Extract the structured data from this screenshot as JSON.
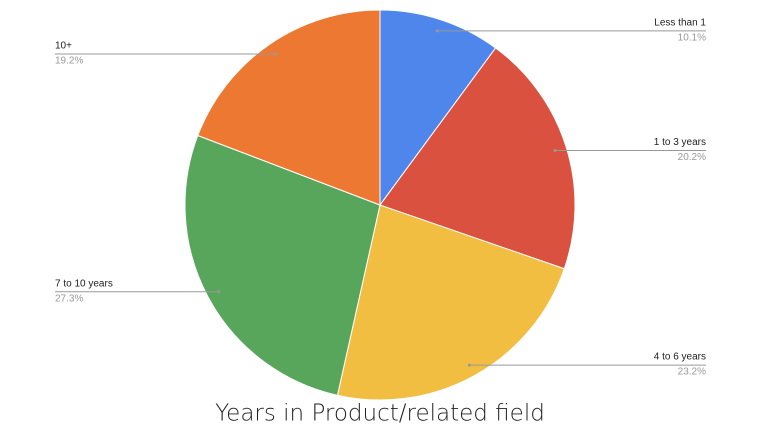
{
  "chart_data": {
    "type": "pie",
    "title": "Years in Product/related field",
    "categories": [
      "Less than 1",
      "1 to 3 years",
      "4 to 6 years",
      "7 to 10 years",
      "10+"
    ],
    "values": [
      10.1,
      20.2,
      23.2,
      27.3,
      19.2
    ],
    "value_labels": [
      "10.1%",
      "20.2%",
      "23.2%",
      "27.3%",
      "19.2%"
    ],
    "colors": [
      "#4f86ec",
      "#db5140",
      "#f2be42",
      "#58a65c",
      "#ec7832"
    ]
  }
}
